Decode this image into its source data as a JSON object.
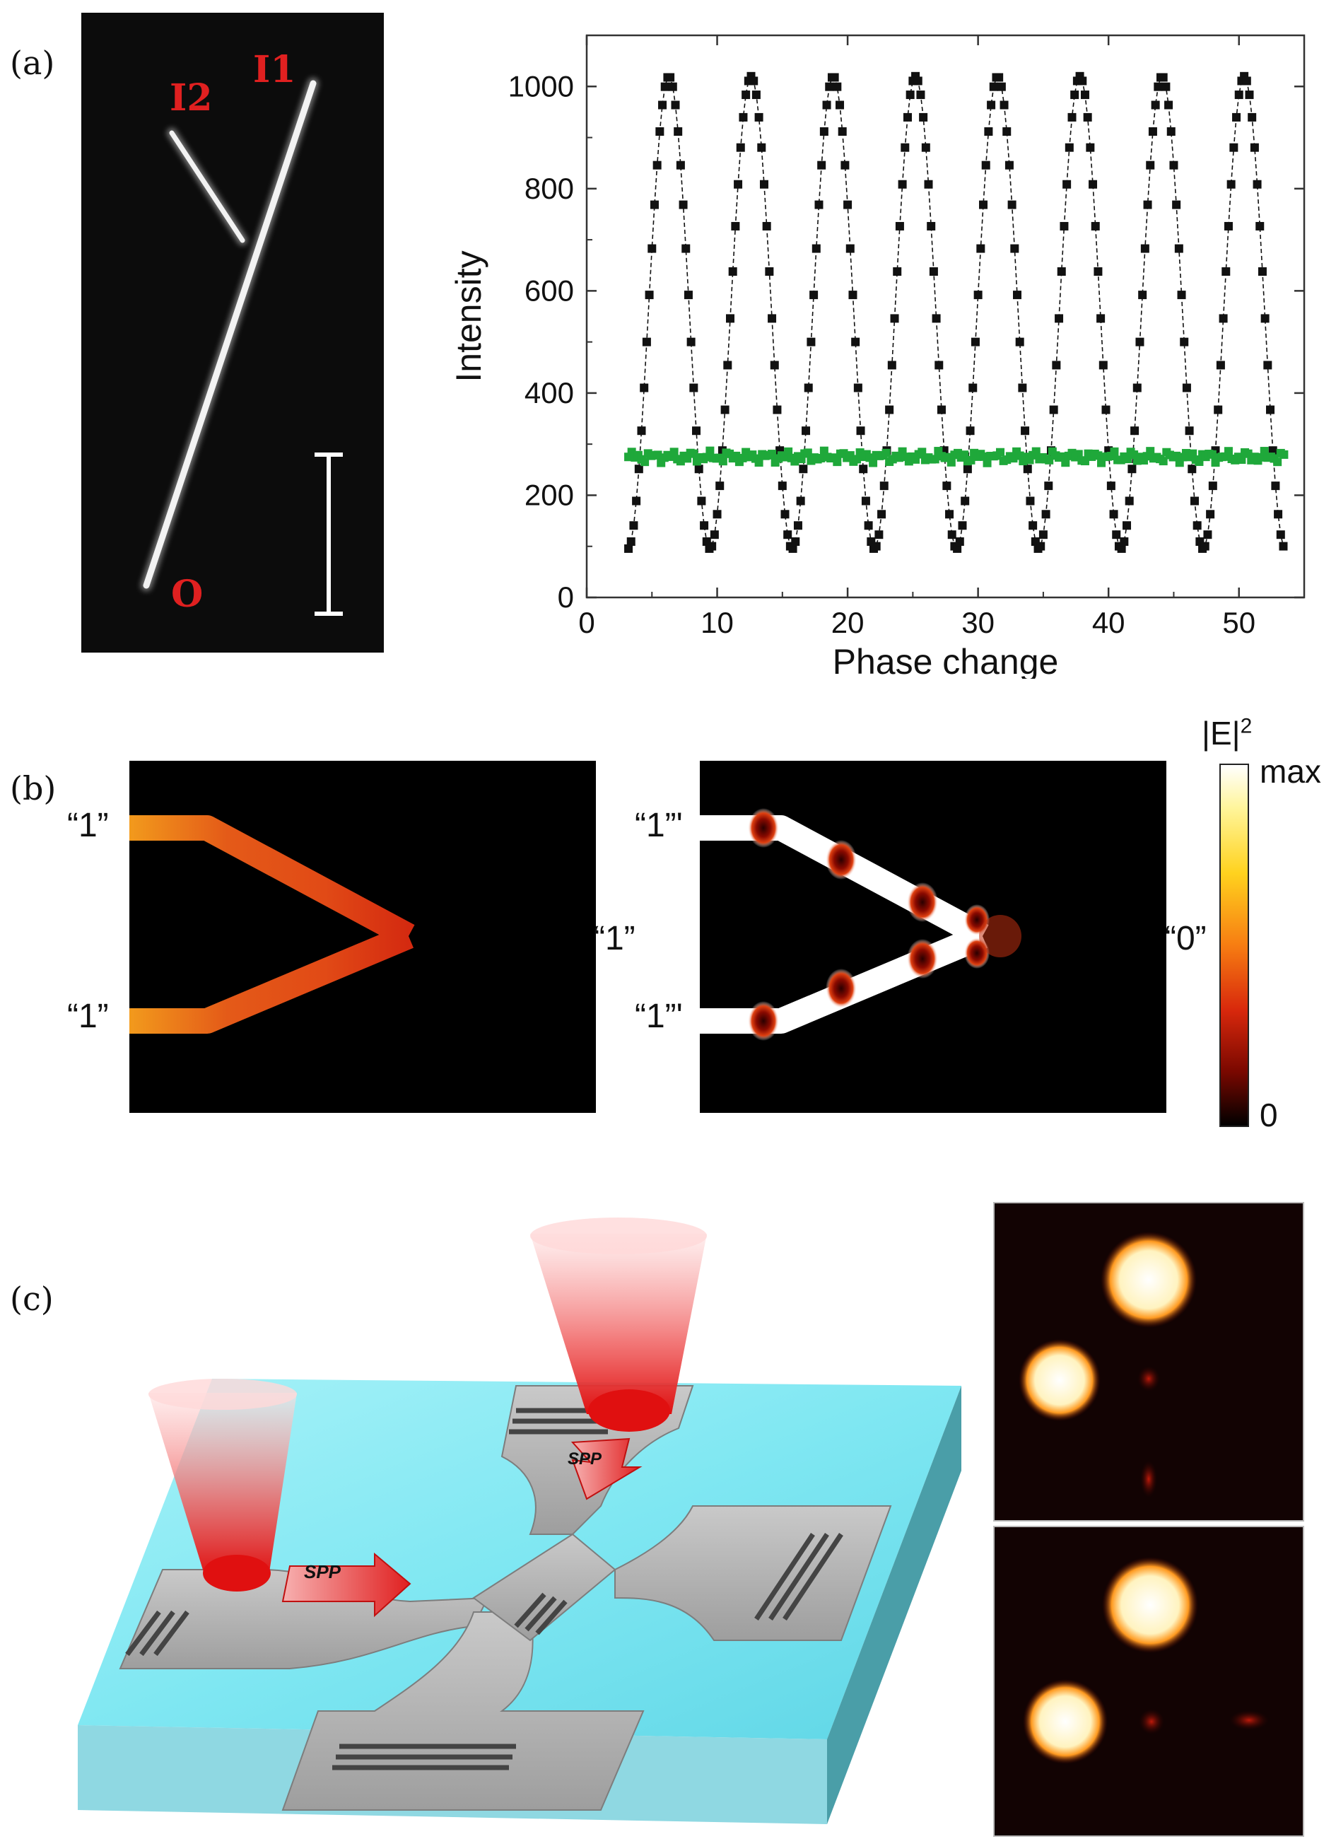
{
  "panels": {
    "a": {
      "label": "(a)",
      "micro_labels": {
        "in1": "I1",
        "in2": "I2",
        "out": "O"
      },
      "chart_data": {
        "type": "scatter",
        "xlabel": "Phase change",
        "ylabel": "Intensity",
        "xlim": [
          0,
          55
        ],
        "ylim": [
          0,
          1100
        ],
        "xticks": [
          0,
          10,
          20,
          30,
          40,
          50
        ],
        "yticks": [
          0,
          200,
          400,
          600,
          800,
          1000
        ],
        "grid": false,
        "series": [
          {
            "style": "black squares with dashed connecting line",
            "color": "#111111",
            "model": {
              "x_start": 3.2,
              "x_end": 53.5,
              "step": 0.2,
              "baseline": 95,
              "peak": 1020,
              "period": 6.3,
              "first_peak_x": 6.3
            }
          },
          {
            "style": "green squares",
            "color": "#1fa83a",
            "model": {
              "x_start": 3.2,
              "x_end": 53.5,
              "step": 0.25,
              "level": 275,
              "jitter": 12
            }
          }
        ]
      }
    },
    "b": {
      "label": "(b)",
      "left_inputs": [
        "“1”",
        "“1”"
      ],
      "left_output": "“1”",
      "right_inputs": [
        "“1”'",
        "“1”'"
      ],
      "right_output": "“0”",
      "colorbar": {
        "title": "|E|",
        "superscript": "2",
        "max": "max",
        "min": "0"
      }
    },
    "c": {
      "label": "(c)",
      "spp_labels": [
        "SPP",
        "SPP"
      ]
    }
  }
}
